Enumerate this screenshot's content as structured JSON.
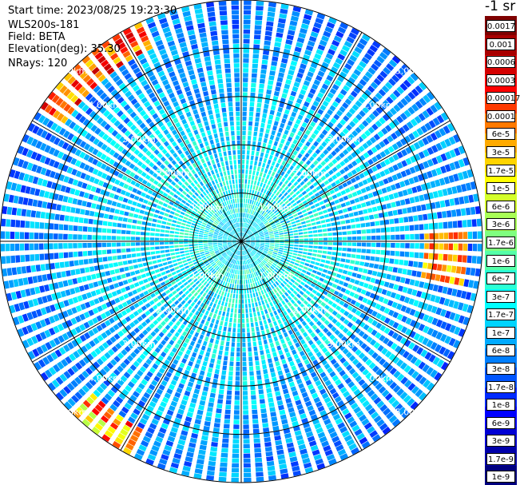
{
  "header": {
    "start_time": "Start time: 2023/08/25 19:23:30",
    "device": "WLS200s-181",
    "field": "Field: BETA",
    "elevation": "Elevation(deg): 35.30",
    "nrays": "NRays: 120"
  },
  "colorbar": {
    "unit": "-1 sr",
    "labels": [
      "0.0017",
      "0.001",
      "0.0006",
      "0.0003",
      "0.00017",
      "0.0001",
      "6e-5",
      "3e-5",
      "1.7e-5",
      "1e-5",
      "6e-6",
      "3e-6",
      "1.7e-6",
      "1e-6",
      "6e-7",
      "3e-7",
      "1.7e-7",
      "1e-7",
      "6e-8",
      "3e-8",
      "1.7e-8",
      "1e-8",
      "6e-9",
      "3e-9",
      "1.7e-9",
      "1e-9"
    ],
    "colors": [
      "#7f0000",
      "#a80000",
      "#d40000",
      "#ff0000",
      "#ff3a00",
      "#ff7a00",
      "#ffaa00",
      "#ffd400",
      "#ffff00",
      "#d4ff2a",
      "#a8ff55",
      "#7fff7f",
      "#55ffa8",
      "#2affd4",
      "#00ffff",
      "#00d4ff",
      "#00aaff",
      "#007fff",
      "#0055ff",
      "#002aff",
      "#0000ff",
      "#0000d4",
      "#0000aa",
      "#00007f"
    ]
  },
  "chart_data": {
    "type": "ppi-polar",
    "nrays": 120,
    "max_range_km": 5.0,
    "range_rings_km": [
      1.0,
      2.0,
      3.0,
      4.0,
      5.0
    ],
    "ring_labels": [
      "1.00km",
      "2.00km",
      "3.00km",
      "4.00km",
      "5.00km"
    ],
    "spoke_angles_deg": [
      0,
      30,
      60,
      90,
      120,
      150
    ],
    "color_scale": "log",
    "value_range": [
      1e-09,
      0.0017
    ]
  }
}
